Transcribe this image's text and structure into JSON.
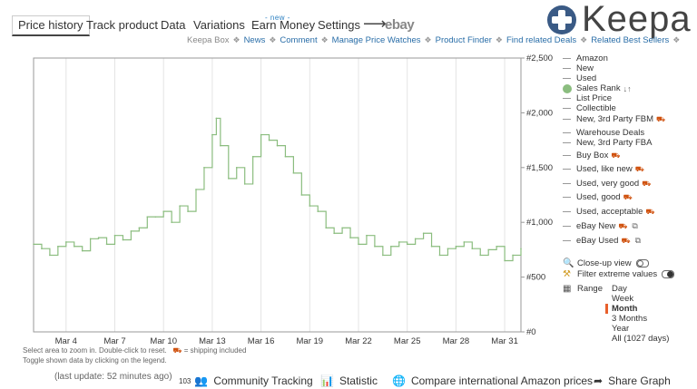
{
  "tabs": [
    {
      "label": "Price history",
      "active": true
    },
    {
      "label": "Track product"
    },
    {
      "label": "Data"
    },
    {
      "label": "Variations"
    },
    {
      "label": "Earn Money"
    },
    {
      "label": "Settings"
    }
  ],
  "new_badge": "- new -",
  "ebay_label": "ebay",
  "logo": {
    "text": "Keepa",
    "color": "#3a5a85"
  },
  "links": [
    {
      "label": "Keepa Box",
      "style": "grey"
    },
    {
      "label": "News",
      "style": "blue"
    },
    {
      "label": "Comment",
      "style": "blue"
    },
    {
      "label": "Manage Price Watches",
      "style": "blue"
    },
    {
      "label": "Product Finder",
      "style": "blue"
    },
    {
      "label": "Find related Deals",
      "style": "blue"
    },
    {
      "label": "Related Best Sellers",
      "style": "blue"
    }
  ],
  "legend": {
    "items": [
      {
        "label": "Amazon",
        "kind": "dash"
      },
      {
        "label": "New",
        "kind": "dash"
      },
      {
        "label": "Used",
        "kind": "dash"
      },
      {
        "label": "Sales Rank",
        "kind": "dot",
        "sort_glyph": "↓↑"
      },
      {
        "label": "List Price",
        "kind": "dash"
      },
      {
        "label": "Collectible",
        "kind": "dash"
      },
      {
        "label": "New, 3rd Party FBM",
        "kind": "dash",
        "truck": true
      },
      {
        "label": "Warehouse Deals",
        "kind": "dash"
      },
      {
        "label": "New, 3rd Party FBA",
        "kind": "dash"
      },
      {
        "label": "Buy Box",
        "kind": "dash",
        "truck": true
      },
      {
        "label": "Used, like new",
        "kind": "dash",
        "truck": true
      },
      {
        "label": "Used, very good",
        "kind": "dash",
        "truck": true
      },
      {
        "label": "Used, good",
        "kind": "dash",
        "truck": true
      },
      {
        "label": "Used, acceptable",
        "kind": "dash",
        "truck": true
      },
      {
        "label": "eBay New",
        "kind": "dash",
        "truck": true,
        "external": true
      },
      {
        "label": "eBay Used",
        "kind": "dash",
        "truck": true,
        "external": true
      }
    ],
    "closeup_label": "Close-up view",
    "filter_label": "Filter extreme values",
    "range_label": "Range",
    "ranges": [
      {
        "label": "Day"
      },
      {
        "label": "Week"
      },
      {
        "label": "Month",
        "active": true
      },
      {
        "label": "3 Months"
      },
      {
        "label": "Year"
      },
      {
        "label": "All (1027 days)"
      }
    ]
  },
  "hints": {
    "line1": "Select area to zoom in. Double-click to reset.",
    "shipping": "= shipping included",
    "line2": "Toggle shown data by clicking on the legend."
  },
  "last_update": "(last update: 52 minutes ago)",
  "bottom": {
    "tracking_count": "103",
    "tracking_label": "Community Tracking",
    "statistic_label": "Statistic",
    "compare_label": "Compare international Amazon prices",
    "share_label": "Share Graph"
  },
  "chart_data": {
    "type": "line",
    "series": [
      {
        "name": "Sales Rank",
        "color": "#8bbd7f",
        "x": [
          2.0,
          2.5,
          3.0,
          3.5,
          4.0,
          4.5,
          5.0,
          5.5,
          6.0,
          6.5,
          7.0,
          7.5,
          8.0,
          8.5,
          9.0,
          9.5,
          10.0,
          10.5,
          11.0,
          11.5,
          12.0,
          12.5,
          13.0,
          13.25,
          13.5,
          14.0,
          14.5,
          15.0,
          15.5,
          16.0,
          16.5,
          17.0,
          17.5,
          18.0,
          18.5,
          19.0,
          19.5,
          20.0,
          20.5,
          21.0,
          21.5,
          22.0,
          22.5,
          23.0,
          23.5,
          24.0,
          24.5,
          25.0,
          25.5,
          26.0,
          26.5,
          27.0,
          27.5,
          28.0,
          28.5,
          29.0,
          29.5,
          30.0,
          30.5,
          31.0,
          31.5,
          32.0
        ],
        "y": [
          800,
          760,
          700,
          780,
          820,
          780,
          740,
          850,
          860,
          800,
          880,
          840,
          920,
          950,
          1050,
          1050,
          1100,
          1000,
          1150,
          1100,
          1300,
          1500,
          1800,
          1950,
          1700,
          1400,
          1500,
          1350,
          1600,
          1800,
          1750,
          1700,
          1600,
          1450,
          1250,
          1150,
          1100,
          950,
          900,
          950,
          860,
          800,
          880,
          780,
          700,
          780,
          820,
          800,
          850,
          900,
          780,
          700,
          760,
          780,
          820,
          760,
          700,
          750,
          780,
          650,
          700,
          760
        ]
      }
    ],
    "x_ticks": [
      {
        "label": "Mar 4",
        "value": 4
      },
      {
        "label": "Mar 7",
        "value": 7
      },
      {
        "label": "Mar 10",
        "value": 10
      },
      {
        "label": "Mar 13",
        "value": 13
      },
      {
        "label": "Mar 16",
        "value": 16
      },
      {
        "label": "Mar 19",
        "value": 19
      },
      {
        "label": "Mar 22",
        "value": 22
      },
      {
        "label": "Mar 25",
        "value": 25
      },
      {
        "label": "Mar 28",
        "value": 28
      },
      {
        "label": "Mar 31",
        "value": 31
      }
    ],
    "y_ticks": [
      {
        "label": "#0",
        "value": 0
      },
      {
        "label": "#500",
        "value": 500
      },
      {
        "label": "#1,000",
        "value": 1000
      },
      {
        "label": "#1,500",
        "value": 1500
      },
      {
        "label": "#2,000",
        "value": 2000
      },
      {
        "label": "#2,500",
        "value": 2500
      }
    ],
    "xlim": [
      2.0,
      32.0
    ],
    "ylim": [
      0,
      2500
    ],
    "grid": "vertical"
  }
}
